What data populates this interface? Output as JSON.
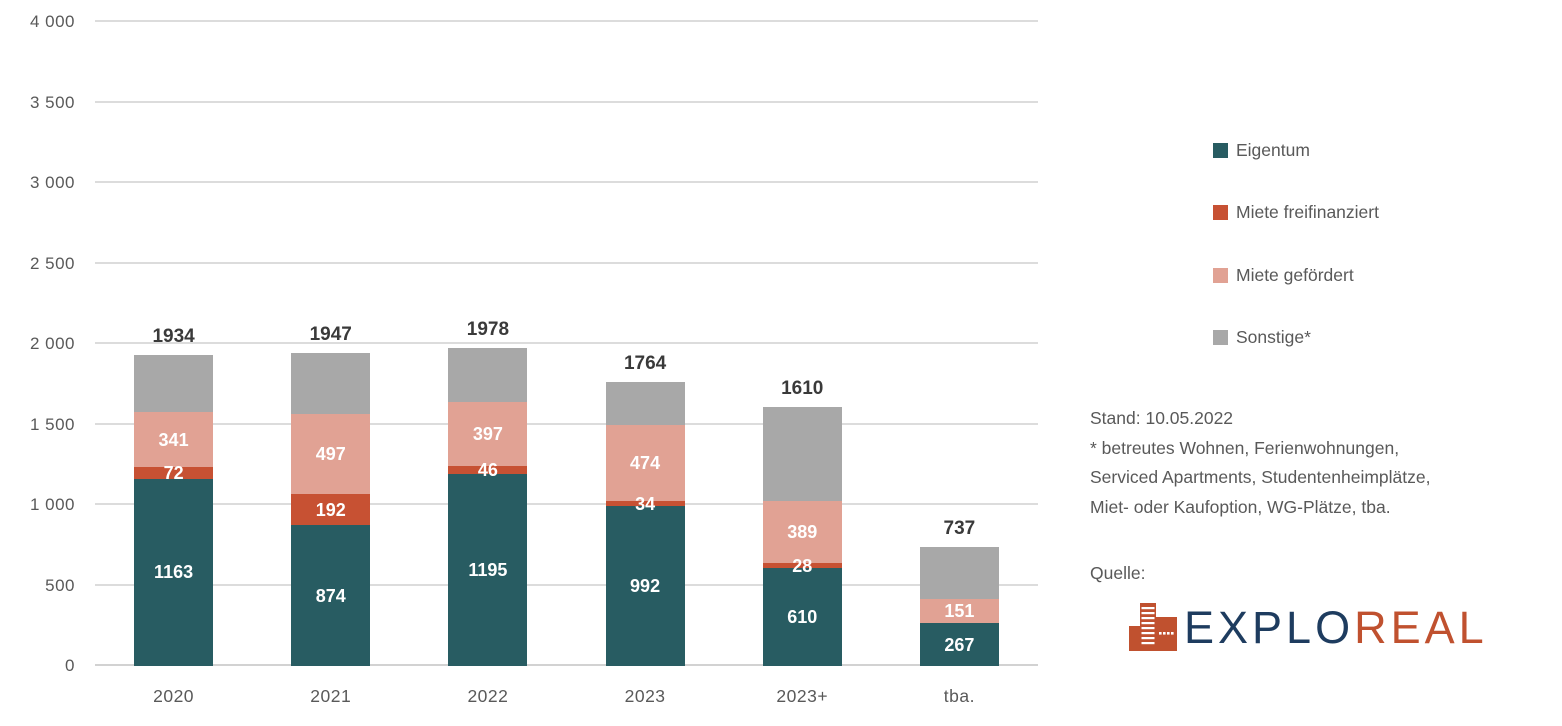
{
  "chart_data": {
    "type": "bar",
    "stacked": true,
    "categories": [
      "2020",
      "2021",
      "2022",
      "2023",
      "2023+",
      "tba."
    ],
    "series": [
      {
        "name": "Eigentum",
        "color": "#285C62",
        "show_labels": true,
        "values": [
          1163,
          874,
          1195,
          992,
          610,
          267
        ]
      },
      {
        "name": "Miete freifinanziert",
        "color": "#C75133",
        "show_labels": true,
        "values": [
          72,
          192,
          46,
          34,
          28,
          0
        ]
      },
      {
        "name": "Miete gefördert",
        "color": "#E1A294",
        "show_labels": true,
        "values": [
          341,
          497,
          397,
          474,
          389,
          151
        ]
      },
      {
        "name": "Sonstige*",
        "color": "#A8A8A8",
        "show_labels": false,
        "values": [
          358,
          384,
          340,
          264,
          583,
          319
        ]
      }
    ],
    "totals": [
      1934,
      1947,
      1978,
      1764,
      1610,
      737
    ],
    "ylim": [
      0,
      4000
    ],
    "ytick_labels": [
      "0",
      "500",
      "1 000",
      "1 500",
      "2 000",
      "2 500",
      "3 000",
      "3 500",
      "4 000"
    ],
    "grid": true,
    "legend_position": "right",
    "title": "",
    "xlabel": "",
    "ylabel": ""
  },
  "notes": {
    "lines": [
      "Stand: 10.05.2022",
      "* betreutes Wohnen, Ferienwohnungen,",
      "Serviced Apartments, Studentenheimplätze,",
      "Miet- oder Kaufoption, WG-Plätze, tba."
    ]
  },
  "source": {
    "label": "Quelle:",
    "logo_text_primary": "EXPLO",
    "logo_text_secondary": "REAL",
    "logo_primary_color": "#1E3C5F",
    "logo_secondary_color": "#C0512F",
    "logo_icon_color": "#C0512F"
  },
  "colors": {
    "background": "#FFFFFF",
    "grid": "#DCDCDC",
    "axis_text": "#595959",
    "total_label": "#3A3A3A",
    "segment_label": "#FFFFFF"
  }
}
